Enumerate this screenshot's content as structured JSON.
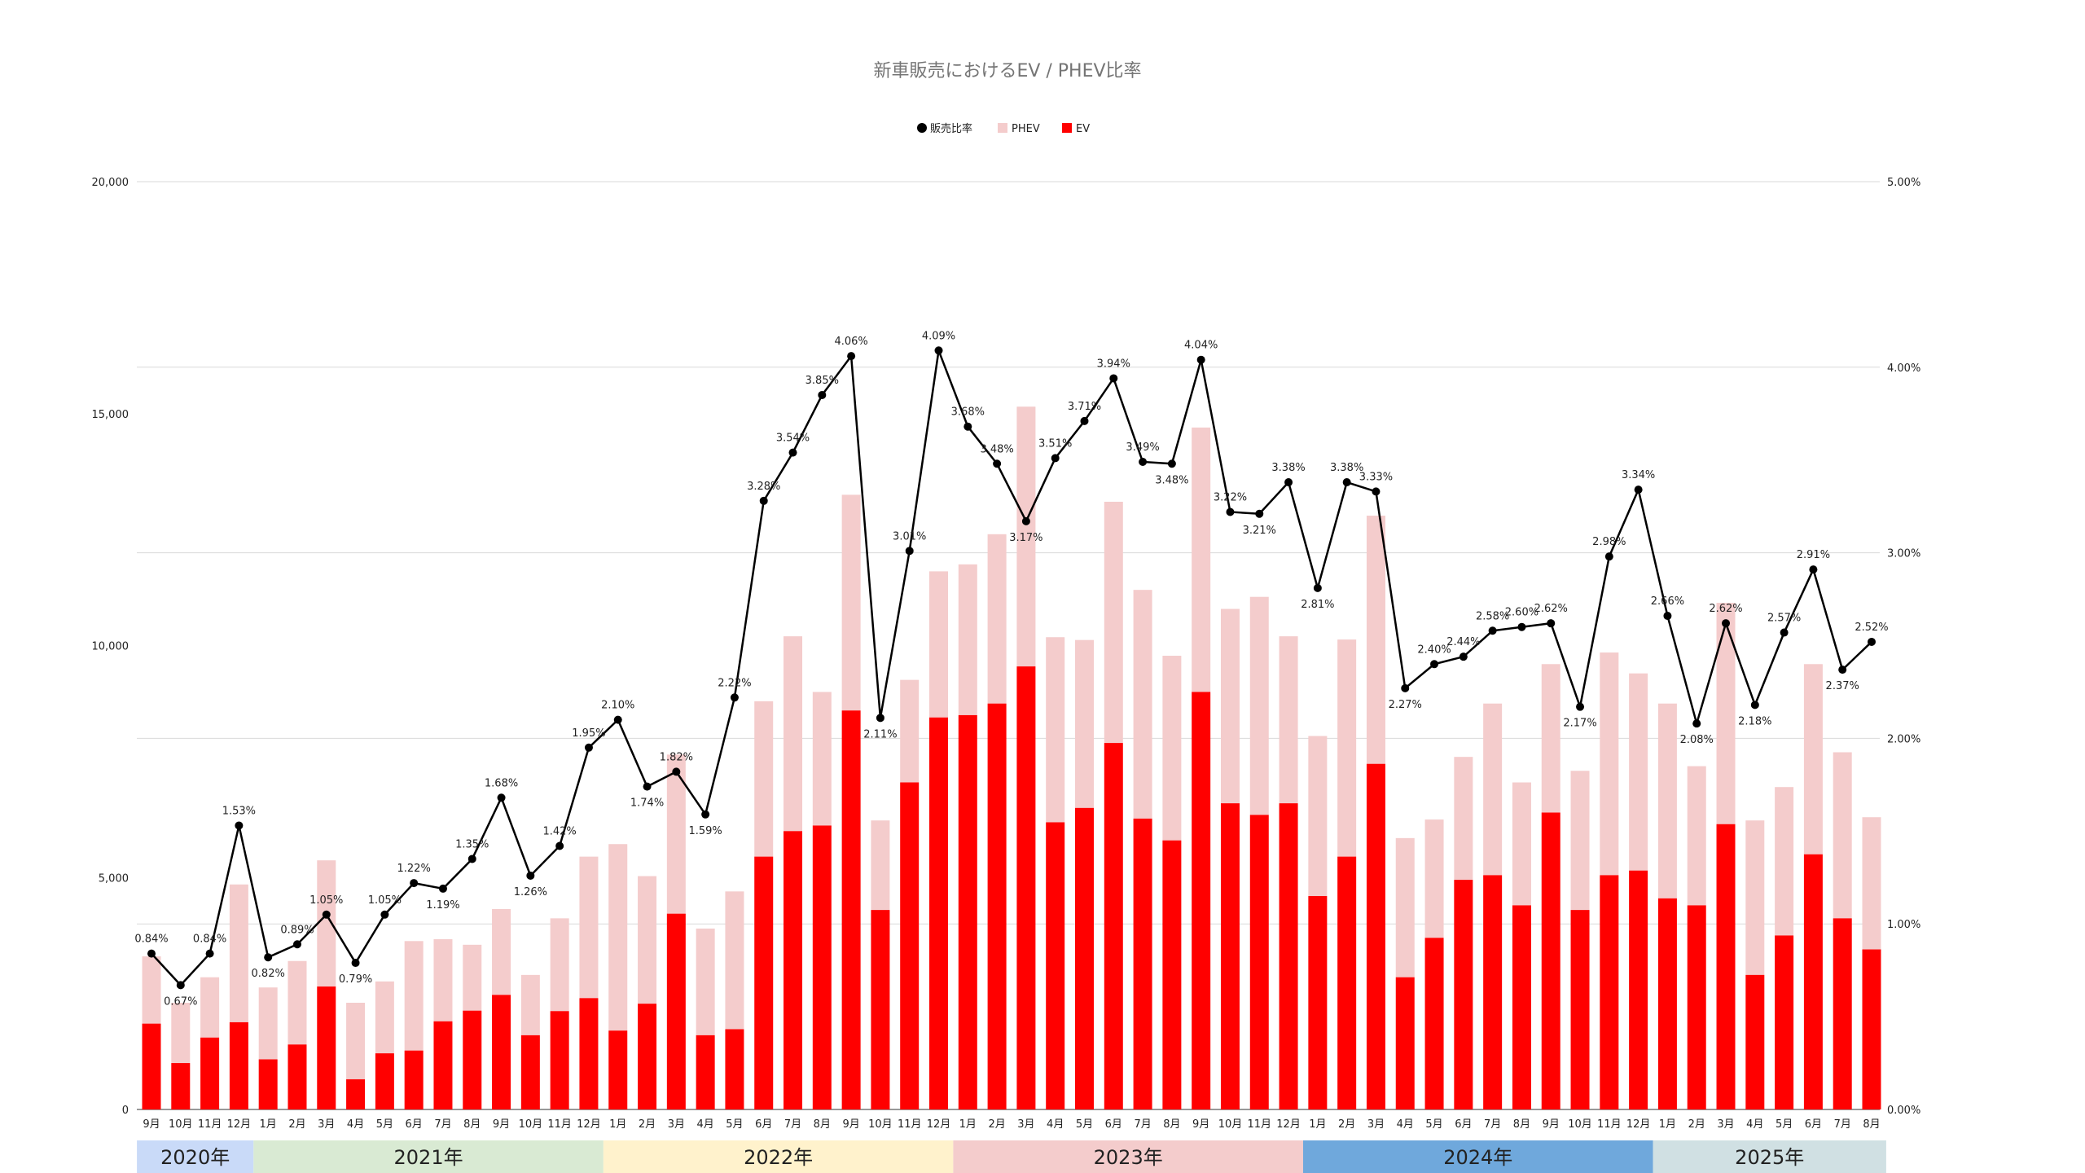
{
  "chart_data": {
    "type": "bar",
    "title": "新車販売におけるEV / PHEV比率",
    "legend": {
      "position": "top",
      "entries": [
        {
          "name": "販売比率",
          "color": "#000000",
          "shape": "circle"
        },
        {
          "name": "PHEV",
          "color": "#f4cccc",
          "shape": "square"
        },
        {
          "name": "EV",
          "color": "#ff0000",
          "shape": "square"
        }
      ]
    },
    "y_left": {
      "ticks": [
        "0",
        "5,000",
        "10,000",
        "15,000",
        "20,000"
      ],
      "range": [
        0,
        20000
      ]
    },
    "y_right": {
      "ticks": [
        "0.00%",
        "1.00%",
        "2.00%",
        "3.00%",
        "4.00%",
        "5.00%"
      ],
      "range": [
        0,
        5
      ]
    },
    "stacked": true,
    "categories": [
      "9月",
      "10月",
      "11月",
      "12月",
      "1月",
      "2月",
      "3月",
      "4月",
      "5月",
      "6月",
      "7月",
      "8月",
      "9月",
      "10月",
      "11月",
      "12月",
      "1月",
      "2月",
      "3月",
      "4月",
      "5月",
      "6月",
      "7月",
      "8月",
      "9月",
      "10月",
      "11月",
      "12月",
      "1月",
      "2月",
      "3月",
      "4月",
      "5月",
      "6月",
      "7月",
      "8月",
      "9月",
      "10月",
      "11月",
      "12月",
      "1月",
      "2月",
      "3月",
      "4月",
      "5月",
      "6月",
      "7月",
      "8月",
      "9月",
      "10月",
      "11月",
      "12月",
      "1月",
      "2月",
      "3月",
      "4月",
      "5月",
      "6月",
      "7月",
      "8月"
    ],
    "years": [
      {
        "label": "2020年",
        "count": 4,
        "color": "#c9daf8"
      },
      {
        "label": "2021年",
        "count": 12,
        "color": "#d9ead3"
      },
      {
        "label": "2022年",
        "count": 12,
        "color": "#fff2cc"
      },
      {
        "label": "2023年",
        "count": 12,
        "color": "#f4cccc"
      },
      {
        "label": "2024年",
        "count": 12,
        "color": "#6fa8dc"
      },
      {
        "label": "2025年",
        "count": 8,
        "color": "#d0e0e3"
      }
    ],
    "series": [
      {
        "name": "EV",
        "color": "#ff0000",
        "axis": "left",
        "values": [
          1850,
          1000,
          1550,
          1880,
          1080,
          1400,
          2650,
          650,
          1210,
          1270,
          1900,
          2130,
          2470,
          1600,
          2120,
          2400,
          1700,
          2280,
          4220,
          1600,
          1730,
          5450,
          6000,
          6120,
          8600,
          4300,
          7050,
          8450,
          8500,
          8750,
          9550,
          6190,
          6500,
          7900,
          6270,
          5800,
          9000,
          6600,
          6350,
          6600,
          4600,
          5450,
          7450,
          2850,
          3700,
          4950,
          5050,
          4400,
          6400,
          4300,
          5050,
          5150,
          4550,
          4400,
          6150,
          2900,
          3750,
          5500,
          4120,
          3450
        ]
      },
      {
        "name": "PHEV",
        "color": "#f4cccc",
        "axis": "left",
        "values": [
          1450,
          1300,
          1300,
          2970,
          1550,
          1800,
          2720,
          1650,
          1550,
          2360,
          1770,
          1420,
          1850,
          1300,
          2000,
          3050,
          4020,
          2750,
          3430,
          2300,
          2970,
          3350,
          4200,
          2880,
          4650,
          1930,
          2210,
          3150,
          3250,
          3650,
          5600,
          3990,
          3620,
          5200,
          4930,
          3980,
          5700,
          4190,
          4700,
          3600,
          3450,
          4680,
          5350,
          3000,
          2550,
          2650,
          3700,
          2650,
          3200,
          3000,
          4800,
          4250,
          4200,
          3000,
          4770,
          3330,
          3200,
          4100,
          3580,
          2850
        ]
      },
      {
        "name": "販売比率",
        "color": "#000000",
        "axis": "right",
        "type": "line",
        "values": [
          0.84,
          0.67,
          0.84,
          1.53,
          0.82,
          0.89,
          1.05,
          0.79,
          1.05,
          1.22,
          1.19,
          1.35,
          1.68,
          1.26,
          1.42,
          1.95,
          2.1,
          1.74,
          1.82,
          1.59,
          2.22,
          3.28,
          3.54,
          3.85,
          4.06,
          2.11,
          3.01,
          4.09,
          3.68,
          3.48,
          3.17,
          3.51,
          3.71,
          3.94,
          3.49,
          3.48,
          4.04,
          3.22,
          3.21,
          3.38,
          2.81,
          3.38,
          3.33,
          2.27,
          2.4,
          2.44,
          2.58,
          2.6,
          2.62,
          2.17,
          2.98,
          3.34,
          2.66,
          2.08,
          2.62,
          2.18,
          2.57,
          2.91,
          2.37,
          2.52
        ],
        "labels": [
          "0.84%",
          "0.67%",
          "0.84%",
          "1.53%",
          "0.82%",
          "0.89%",
          "1.05%",
          "0.79%",
          "1.05%",
          "1.22%",
          "1.19%",
          "1.35%",
          "1.68%",
          "1.26%",
          "1.42%",
          "1.95%",
          "2.10%",
          "1.74%",
          "1.82%",
          "1.59%",
          "2.22%",
          "3.28%",
          "3.54%",
          "3.85%",
          "4.06%",
          "2.11%",
          "3.01%",
          "4.09%",
          "3.68%",
          "3.48%",
          "3.17%",
          "3.51%",
          "3.71%",
          "3.94%",
          "3.49%",
          "3.48%",
          "4.04%",
          "3.22%",
          "3.21%",
          "3.38%",
          "2.81%",
          "3.38%",
          "3.33%",
          "2.27%",
          "2.40%",
          "2.44%",
          "2.58%",
          "2.60%",
          "2.62%",
          "2.17%",
          "2.98%",
          "3.34%",
          "2.66%",
          "2.08%",
          "2.62%",
          "2.18%",
          "2.57%",
          "2.91%",
          "2.37%",
          "2.52%"
        ]
      }
    ],
    "grid": true
  }
}
